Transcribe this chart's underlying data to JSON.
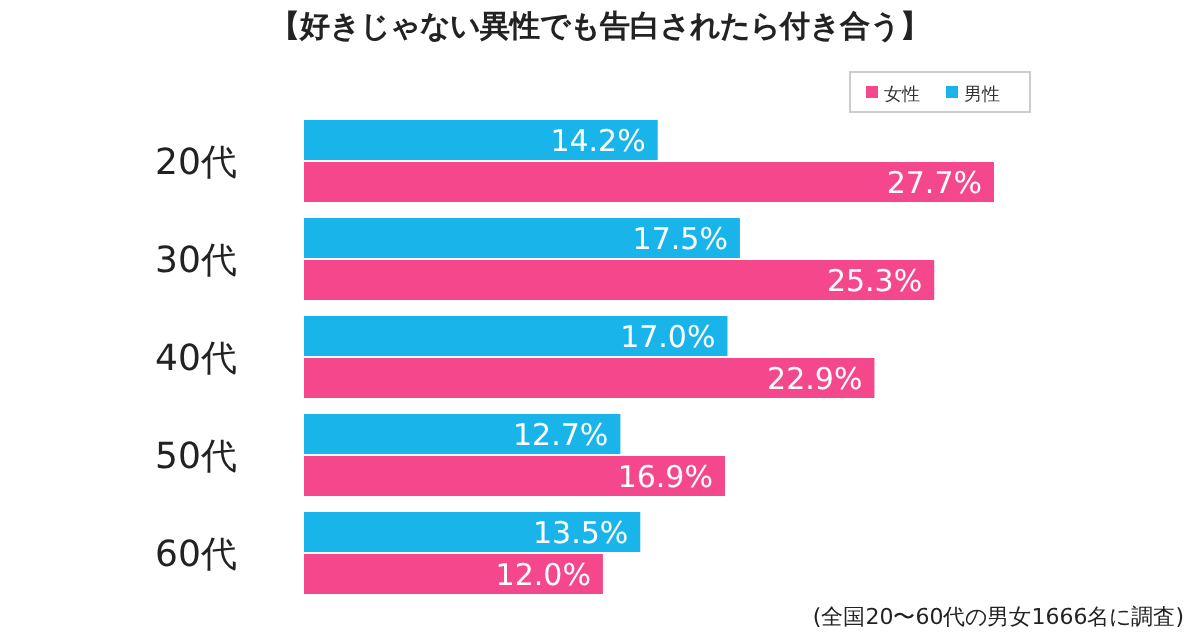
{
  "chart_data": {
    "type": "bar",
    "orientation": "horizontal",
    "title": "【好きじゃない異性でも告白されたら付き合う】",
    "categories": [
      "20代",
      "30代",
      "40代",
      "50代",
      "60代"
    ],
    "series": [
      {
        "name": "女性",
        "color": "#f5488c",
        "values": [
          27.7,
          25.3,
          22.9,
          16.9,
          12.0
        ],
        "value_labels": [
          "27.7%",
          "25.3%",
          "22.9%",
          "16.9%",
          "12.0%"
        ]
      },
      {
        "name": "男性",
        "color": "#19b5ea",
        "values": [
          14.2,
          17.5,
          17.0,
          12.7,
          13.5
        ],
        "value_labels": [
          "14.2%",
          "17.5%",
          "17.0%",
          "12.7%",
          "13.5%"
        ]
      }
    ],
    "legend": "top right",
    "annotations": [
      "(全国20〜60代の男女1666名に調査)"
    ]
  }
}
